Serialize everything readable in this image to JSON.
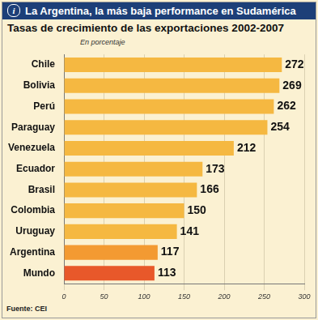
{
  "chart_data": {
    "type": "bar",
    "orientation": "horizontal",
    "title": "La Argentina, la más baja performance en Sudamérica",
    "subtitle": "Tasas de crecimiento de las exportaciones 2002-2007",
    "x_label": "En porcentaje",
    "source": "Fuente: CEI",
    "categories": [
      "Chile",
      "Bolivia",
      "Perú",
      "Paraguay",
      "Venezuela",
      "Ecuador",
      "Brasil",
      "Colombia",
      "Uruguay",
      "Argentina",
      "Mundo"
    ],
    "values": [
      272,
      269,
      262,
      254,
      212,
      173,
      166,
      150,
      141,
      117,
      113
    ],
    "colors": [
      "#f5b841",
      "#f5b841",
      "#f5b841",
      "#f5b841",
      "#f5b841",
      "#f5b841",
      "#f5b841",
      "#f5b841",
      "#f5b841",
      "#f39a32",
      "#e8582a"
    ],
    "xlim": [
      0,
      300
    ],
    "xticks": [
      0,
      50,
      100,
      150,
      200,
      250,
      300
    ],
    "grid": true,
    "data_labels": true
  }
}
